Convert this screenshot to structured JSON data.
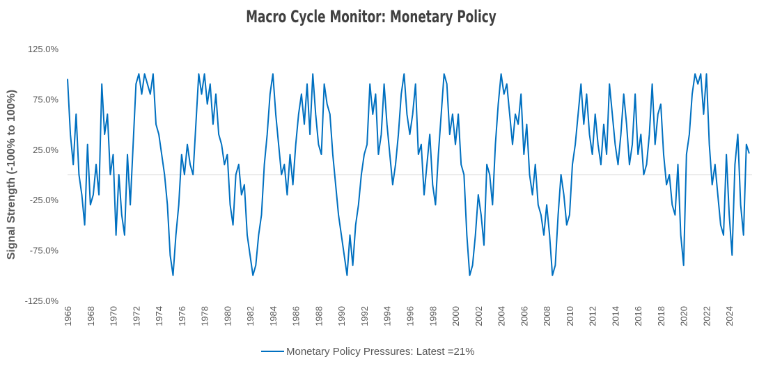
{
  "chart_data": {
    "type": "line",
    "title": "Macro Cycle Monitor: Monetary Policy",
    "y_label": "Signal Strength (-100% to 100%)",
    "xlim": [
      1966,
      2026
    ],
    "xticks": [
      1966,
      1968,
      1970,
      1972,
      1974,
      1976,
      1978,
      1980,
      1982,
      1984,
      1986,
      1988,
      1990,
      1992,
      1994,
      1996,
      1998,
      2000,
      2002,
      2004,
      2006,
      2008,
      2010,
      2012,
      2014,
      2016,
      2018,
      2020,
      2022,
      2024
    ],
    "ylim": [
      -125,
      125
    ],
    "yticks": [
      {
        "value": 125,
        "label": "125.0%"
      },
      {
        "value": 75,
        "label": "75.0%"
      },
      {
        "value": 25,
        "label": "25.0%"
      },
      {
        "value": -25,
        "label": "-25.0%"
      },
      {
        "value": -75,
        "label": "-75.0%"
      },
      {
        "value": -125,
        "label": "-125.0%"
      }
    ],
    "x": [
      1966,
      1966.25,
      1966.5,
      1966.75,
      1967,
      1967.25,
      1967.5,
      1967.75,
      1968,
      1968.25,
      1968.5,
      1968.75,
      1969,
      1969.25,
      1969.5,
      1969.75,
      1970,
      1970.25,
      1970.5,
      1970.75,
      1971,
      1971.25,
      1971.5,
      1971.75,
      1972,
      1972.25,
      1972.5,
      1972.75,
      1973,
      1973.25,
      1973.5,
      1973.75,
      1974,
      1974.25,
      1974.5,
      1974.75,
      1975,
      1975.25,
      1975.5,
      1975.75,
      1976,
      1976.25,
      1976.5,
      1976.75,
      1977,
      1977.25,
      1977.5,
      1977.75,
      1978,
      1978.25,
      1978.5,
      1978.75,
      1979,
      1979.25,
      1979.5,
      1979.75,
      1980,
      1980.25,
      1980.5,
      1980.75,
      1981,
      1981.25,
      1981.5,
      1981.75,
      1982,
      1982.25,
      1982.5,
      1982.75,
      1983,
      1983.25,
      1983.5,
      1983.75,
      1984,
      1984.25,
      1984.5,
      1984.75,
      1985,
      1985.25,
      1985.5,
      1985.75,
      1986,
      1986.25,
      1986.5,
      1986.75,
      1987,
      1987.25,
      1987.5,
      1987.75,
      1988,
      1988.25,
      1988.5,
      1988.75,
      1989,
      1989.25,
      1989.5,
      1989.75,
      1990,
      1990.25,
      1990.5,
      1990.75,
      1991,
      1991.25,
      1991.5,
      1991.75,
      1992,
      1992.25,
      1992.5,
      1992.75,
      1993,
      1993.25,
      1993.5,
      1993.75,
      1994,
      1994.25,
      1994.5,
      1994.75,
      1995,
      1995.25,
      1995.5,
      1995.75,
      1996,
      1996.25,
      1996.5,
      1996.75,
      1997,
      1997.25,
      1997.5,
      1997.75,
      1998,
      1998.25,
      1998.5,
      1998.75,
      1999,
      1999.25,
      1999.5,
      1999.75,
      2000,
      2000.25,
      2000.5,
      2000.75,
      2001,
      2001.25,
      2001.5,
      2001.75,
      2002,
      2002.25,
      2002.5,
      2002.75,
      2003,
      2003.25,
      2003.5,
      2003.75,
      2004,
      2004.25,
      2004.5,
      2004.75,
      2005,
      2005.25,
      2005.5,
      2005.75,
      2006,
      2006.25,
      2006.5,
      2006.75,
      2007,
      2007.25,
      2007.5,
      2007.75,
      2008,
      2008.25,
      2008.5,
      2008.75,
      2009,
      2009.25,
      2009.5,
      2009.75,
      2010,
      2010.25,
      2010.5,
      2010.75,
      2011,
      2011.25,
      2011.5,
      2011.75,
      2012,
      2012.25,
      2012.5,
      2012.75,
      2013,
      2013.25,
      2013.5,
      2013.75,
      2014,
      2014.25,
      2014.5,
      2014.75,
      2015,
      2015.25,
      2015.5,
      2015.75,
      2016,
      2016.25,
      2016.5,
      2016.75,
      2017,
      2017.25,
      2017.5,
      2017.75,
      2018,
      2018.25,
      2018.5,
      2018.75,
      2019,
      2019.25,
      2019.5,
      2019.75,
      2020,
      2020.25,
      2020.5,
      2020.75,
      2021,
      2021.25,
      2021.5,
      2021.75,
      2022,
      2022.25,
      2022.5,
      2022.75,
      2023,
      2023.25,
      2023.5,
      2023.75,
      2024,
      2024.25,
      2024.5,
      2024.75,
      2025,
      2025.25,
      2025.5,
      2025.75
    ],
    "series": [
      {
        "name": "Monetary Policy Pressures: Latest =21%",
        "color": "#0070c0",
        "values": [
          95,
          40,
          10,
          60,
          0,
          -20,
          -50,
          30,
          -30,
          -20,
          10,
          -20,
          90,
          40,
          60,
          0,
          20,
          -60,
          0,
          -40,
          -60,
          20,
          -30,
          30,
          90,
          100,
          80,
          100,
          90,
          80,
          100,
          50,
          40,
          20,
          0,
          -30,
          -80,
          -100,
          -60,
          -30,
          20,
          0,
          30,
          10,
          0,
          50,
          100,
          80,
          100,
          70,
          90,
          50,
          80,
          40,
          30,
          10,
          20,
          -30,
          -50,
          0,
          10,
          -20,
          -10,
          -60,
          -80,
          -100,
          -90,
          -60,
          -40,
          10,
          40,
          80,
          100,
          60,
          30,
          0,
          10,
          -20,
          20,
          -10,
          30,
          60,
          80,
          50,
          90,
          40,
          100,
          60,
          30,
          20,
          90,
          70,
          60,
          20,
          -10,
          -40,
          -60,
          -80,
          -100,
          -60,
          -90,
          -50,
          -30,
          0,
          20,
          30,
          90,
          60,
          80,
          20,
          40,
          90,
          50,
          20,
          -10,
          10,
          40,
          80,
          100,
          60,
          40,
          60,
          90,
          20,
          30,
          -20,
          10,
          40,
          -10,
          -30,
          20,
          60,
          100,
          90,
          40,
          60,
          30,
          60,
          10,
          0,
          -60,
          -100,
          -90,
          -60,
          -20,
          -40,
          -70,
          10,
          0,
          -30,
          30,
          70,
          100,
          80,
          90,
          60,
          30,
          60,
          50,
          80,
          20,
          50,
          0,
          -20,
          10,
          -30,
          -40,
          -60,
          -30,
          -60,
          -100,
          -90,
          -40,
          0,
          -20,
          -50,
          -40,
          10,
          30,
          60,
          90,
          50,
          80,
          40,
          20,
          60,
          30,
          10,
          50,
          20,
          90,
          60,
          30,
          10,
          40,
          80,
          50,
          10,
          30,
          80,
          20,
          40,
          0,
          10,
          40,
          90,
          30,
          60,
          70,
          20,
          -10,
          0,
          -30,
          -40,
          10,
          -60,
          -90,
          20,
          40,
          80,
          100,
          90,
          100,
          60,
          100,
          30,
          -10,
          10,
          -20,
          -50,
          -60,
          20,
          -40,
          -80,
          10,
          40,
          -30,
          -60,
          30,
          21
        ]
      }
    ]
  }
}
